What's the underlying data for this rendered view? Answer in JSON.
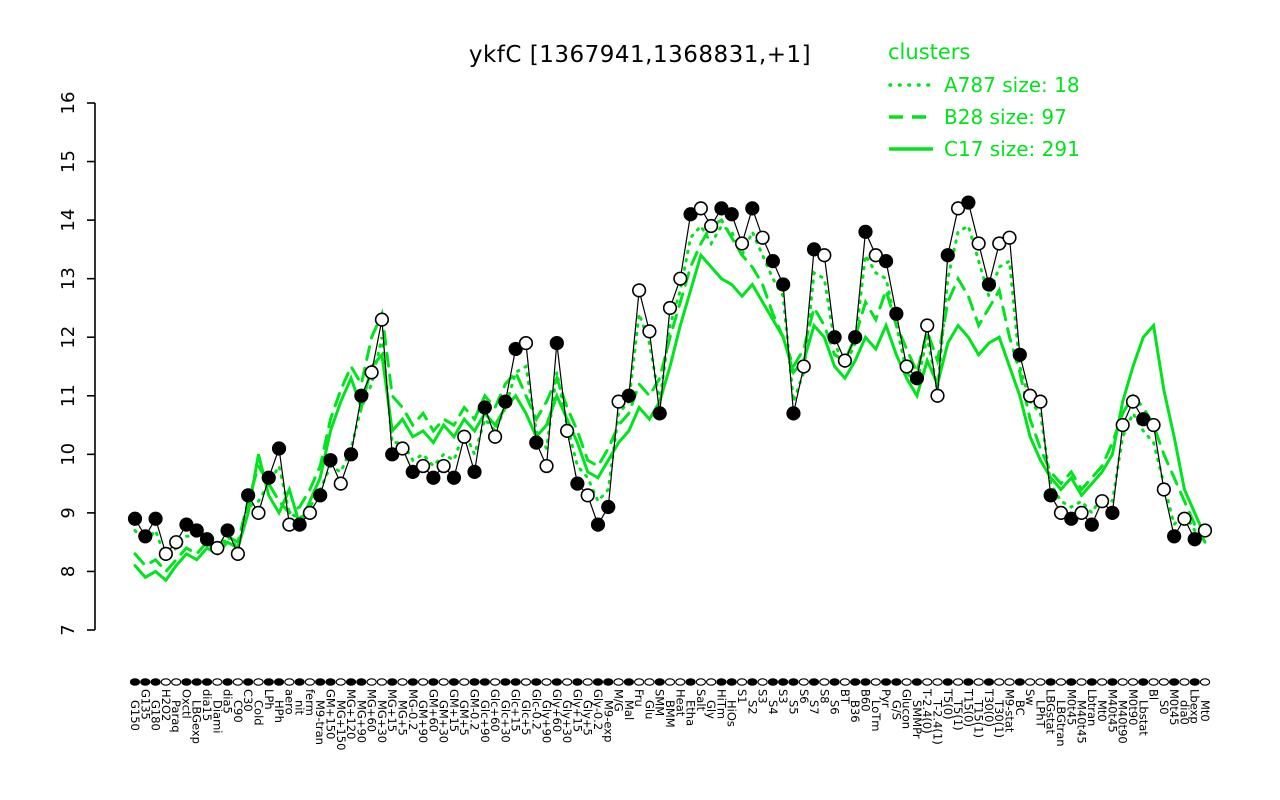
{
  "title": "ykfC [1367941,1368831,+1]",
  "legend": {
    "title": "clusters",
    "entries": [
      {
        "label": "A787 size: 18",
        "style": "dotted"
      },
      {
        "label": "B28 size: 97",
        "style": "dashed"
      },
      {
        "label": "C17 size: 291",
        "style": "solid"
      }
    ]
  },
  "colors": {
    "cluster_green": "#00e41c",
    "profile_black": "#000000",
    "background": "#ffffff"
  },
  "chart_data": {
    "type": "line",
    "title": "ykfC [1367941,1368831,+1]",
    "ylim": [
      7,
      16
    ],
    "yticks": [
      7,
      8,
      9,
      10,
      11,
      12,
      13,
      14,
      15,
      16
    ],
    "grid": false,
    "legend_position": "top-right",
    "categories": [
      "G150",
      "G135",
      "G180",
      "H2O2",
      "Paraq",
      "Oxctl",
      "LBGexp",
      "dia15",
      "Diami",
      "dia5",
      "C90",
      "C30",
      "Cold",
      "LPh",
      "HPh",
      "aero",
      "nit",
      "ferm",
      "M9-tran",
      "GM+150",
      "MG+150",
      "MG+120",
      "MG+90",
      "MG+60",
      "MG+30",
      "MG+15",
      "MG+5",
      "MG-0.2",
      "GM+90",
      "GM+60",
      "GM+30",
      "GM+15",
      "GM+5",
      "GM-0.2",
      "Glc+90",
      "Glc+60",
      "Glc+30",
      "Glc+15",
      "Glc+5",
      "Glc-0.2",
      "Gly+90",
      "Gly+60",
      "Gly+30",
      "Gly+15",
      "Gly+5",
      "Gly-0.2",
      "M9-exp",
      "M/G",
      "Mal",
      "Fru",
      "Glu",
      "SMM",
      "BMM",
      "Heat",
      "Etha",
      "Salt",
      "Gly",
      "HiTm",
      "HiOs",
      "S1",
      "S2",
      "S3",
      "S4",
      "S3",
      "S5",
      "S6",
      "S7",
      "S8",
      "S6",
      "BT",
      "B36",
      "B60",
      "LoTm",
      "Pyr",
      "G/S",
      "Glucon",
      "SMMPr",
      "T-2.4(0)",
      "T-2.4(1)",
      "T5(0)",
      "T5(1)",
      "T15(0)",
      "T15(1)",
      "T30(0)",
      "T30(1)",
      "M9-stat",
      "BC",
      "Sw",
      "LPhT",
      "LBGstat",
      "LBGtran",
      "M0t45",
      "M40t45",
      "Lbtran",
      "Mt0",
      "M40t45",
      "M40t90",
      "M0t90",
      "Lbstat",
      "Bl",
      "S0",
      "M0t45",
      "dia0",
      "Lbexp",
      "Mt0"
    ],
    "point_filled": [
      1,
      1,
      1,
      0,
      0,
      1,
      1,
      1,
      0,
      1,
      0,
      1,
      0,
      1,
      1,
      0,
      1,
      0,
      1,
      1,
      0,
      1,
      1,
      0,
      0,
      1,
      0,
      1,
      0,
      1,
      0,
      1,
      0,
      1,
      1,
      0,
      1,
      1,
      0,
      1,
      0,
      1,
      0,
      1,
      0,
      1,
      1,
      0,
      1,
      0,
      0,
      1,
      0,
      0,
      1,
      0,
      0,
      1,
      1,
      0,
      1,
      0,
      1,
      1,
      1,
      0,
      1,
      0,
      1,
      0,
      1,
      1,
      0,
      1,
      1,
      0,
      1,
      0,
      0,
      1,
      0,
      1,
      0,
      1,
      0,
      0,
      1,
      0,
      0,
      1,
      0,
      1,
      0,
      1,
      0,
      1,
      0,
      0,
      1,
      0,
      0,
      1,
      0,
      1,
      0
    ],
    "series": [
      {
        "name": "ykfC profile",
        "color": "#000000",
        "style": "points",
        "values": [
          8.9,
          8.6,
          8.9,
          8.3,
          8.5,
          8.8,
          8.7,
          8.55,
          8.4,
          8.7,
          8.3,
          9.3,
          9.0,
          9.6,
          10.1,
          8.8,
          8.8,
          9.0,
          9.3,
          9.9,
          9.5,
          10.0,
          11.0,
          11.4,
          12.3,
          10.0,
          10.1,
          9.7,
          9.8,
          9.6,
          9.8,
          9.6,
          10.3,
          9.7,
          10.8,
          10.3,
          10.9,
          11.8,
          11.9,
          10.2,
          9.8,
          11.9,
          10.4,
          9.5,
          9.3,
          8.8,
          9.1,
          10.9,
          11.0,
          12.8,
          12.1,
          10.7,
          12.5,
          13.0,
          14.1,
          14.2,
          13.9,
          14.2,
          14.1,
          13.6,
          14.2,
          13.7,
          13.3,
          12.9,
          10.7,
          11.5,
          13.5,
          13.4,
          12.0,
          11.6,
          12.0,
          13.8,
          13.4,
          13.3,
          12.4,
          11.5,
          11.3,
          12.2,
          11.0,
          13.4,
          14.2,
          14.3,
          13.6,
          12.9,
          13.6,
          13.7,
          11.7,
          11.0,
          10.9,
          9.3,
          9.0,
          8.9,
          9.0,
          8.8,
          9.2,
          9.0,
          10.5,
          10.9,
          10.6,
          10.5,
          9.4,
          8.6,
          8.9,
          8.55,
          8.7
        ]
      },
      {
        "name": "A787 size: 18",
        "color": "#00e41c",
        "style": "dotted",
        "values": [
          8.7,
          8.5,
          8.7,
          8.2,
          8.4,
          8.6,
          8.6,
          8.5,
          8.3,
          8.6,
          8.4,
          9.1,
          9.2,
          9.5,
          9.8,
          9.0,
          8.9,
          9.1,
          9.4,
          9.8,
          9.7,
          10.1,
          10.8,
          11.2,
          12.0,
          10.2,
          10.2,
          9.9,
          10.0,
          9.8,
          10.0,
          9.9,
          10.4,
          10.0,
          10.6,
          10.4,
          10.8,
          11.4,
          11.5,
          10.4,
          10.1,
          11.4,
          10.5,
          9.8,
          9.6,
          9.2,
          9.4,
          10.7,
          10.9,
          12.4,
          11.9,
          10.9,
          12.2,
          12.8,
          13.7,
          13.9,
          13.6,
          13.9,
          13.8,
          13.4,
          13.8,
          13.4,
          13.0,
          12.7,
          10.9,
          11.4,
          13.1,
          13.0,
          11.9,
          11.5,
          11.9,
          13.4,
          13.1,
          13.0,
          12.2,
          11.4,
          11.2,
          12.0,
          11.1,
          13.0,
          13.8,
          13.9,
          13.3,
          12.7,
          13.2,
          13.3,
          11.5,
          10.9,
          10.7,
          9.5,
          9.2,
          9.1,
          9.2,
          9.0,
          9.3,
          9.2,
          10.3,
          10.7,
          10.4,
          10.2,
          9.5,
          8.8,
          9.0,
          8.7,
          8.8
        ]
      },
      {
        "name": "B28 size: 97",
        "color": "#00e41c",
        "style": "dashed",
        "values": [
          8.3,
          8.1,
          8.2,
          8.0,
          8.2,
          8.4,
          8.3,
          8.5,
          8.4,
          8.6,
          8.5,
          9.2,
          9.8,
          9.5,
          9.2,
          9.0,
          9.1,
          9.4,
          9.8,
          10.6,
          11.1,
          11.5,
          11.2,
          12.0,
          12.4,
          11.0,
          10.8,
          10.5,
          10.7,
          10.4,
          10.6,
          10.5,
          10.8,
          10.6,
          11.0,
          10.8,
          11.2,
          11.4,
          11.0,
          10.6,
          10.9,
          11.3,
          10.8,
          10.4,
          9.9,
          9.8,
          10.1,
          10.5,
          10.7,
          11.2,
          11.0,
          11.3,
          12.0,
          12.6,
          13.2,
          13.6,
          13.9,
          14.0,
          13.7,
          13.4,
          13.2,
          12.9,
          12.4,
          12.0,
          11.5,
          11.8,
          12.5,
          12.2,
          11.7,
          11.6,
          12.0,
          12.6,
          12.3,
          12.8,
          12.2,
          11.8,
          11.4,
          12.1,
          11.6,
          12.6,
          13.0,
          12.7,
          12.2,
          12.5,
          12.8,
          12.0,
          11.4,
          10.6,
          10.1,
          9.7,
          9.5,
          9.7,
          9.4,
          9.6,
          9.8,
          10.2,
          10.7,
          11.0,
          10.8,
          10.5,
          10.0,
          9.6,
          9.2,
          8.8,
          8.5
        ]
      },
      {
        "name": "C17 size: 291",
        "color": "#00e41c",
        "style": "solid",
        "values": [
          8.1,
          7.9,
          8.0,
          7.85,
          8.1,
          8.3,
          8.2,
          8.4,
          8.3,
          8.5,
          8.4,
          9.0,
          10.0,
          9.3,
          9.0,
          9.4,
          8.8,
          9.2,
          9.6,
          10.4,
          10.9,
          11.3,
          10.8,
          11.5,
          11.7,
          10.4,
          10.6,
          10.3,
          10.4,
          10.2,
          10.5,
          10.3,
          10.6,
          10.4,
          10.7,
          10.5,
          10.8,
          11.0,
          10.7,
          10.3,
          10.5,
          11.0,
          10.6,
          10.2,
          9.7,
          9.6,
          9.9,
          10.2,
          10.4,
          10.8,
          10.6,
          10.9,
          11.5,
          12.2,
          12.8,
          13.4,
          13.2,
          13.0,
          12.9,
          12.7,
          12.9,
          12.6,
          12.3,
          12.0,
          11.4,
          11.6,
          12.2,
          12.0,
          11.5,
          11.3,
          11.6,
          12.0,
          11.8,
          12.2,
          11.7,
          11.3,
          11.0,
          11.6,
          11.2,
          11.9,
          12.2,
          12.0,
          11.7,
          11.9,
          12.0,
          11.5,
          11.0,
          10.3,
          9.9,
          9.6,
          9.4,
          9.6,
          9.3,
          9.5,
          9.7,
          10.0,
          10.9,
          11.5,
          12.0,
          12.2,
          11.1,
          10.3,
          9.4,
          9.0,
          8.6
        ]
      }
    ]
  }
}
